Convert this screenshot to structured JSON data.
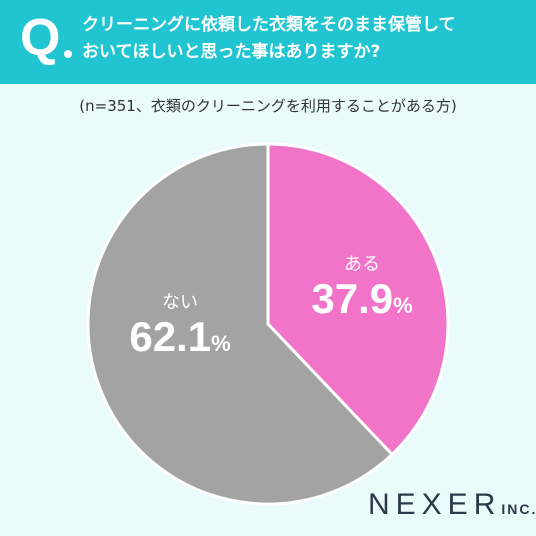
{
  "question": {
    "mark": "Q",
    "line1": "クリーニングに依頼した衣類をそのまま保管して",
    "line2": "おいてほしいと思った事はありますか?"
  },
  "subtitle": "(n=351、衣類のクリーニングを利用することがある方)",
  "chart_data": {
    "type": "pie",
    "categories": [
      "ある",
      "ない"
    ],
    "values": [
      37.9,
      62.1
    ],
    "labels": [
      "37.9",
      "62.1"
    ],
    "unit": "%",
    "colors": [
      "#f274c9",
      "#a3a3a3"
    ]
  },
  "logo": {
    "main": "NEXER",
    "suffix": "INC."
  }
}
